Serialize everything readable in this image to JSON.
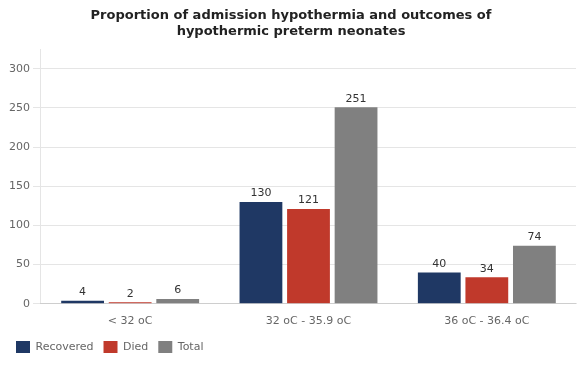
{
  "chart_data": {
    "type": "bar",
    "title": "Proportion of admission hypothermia and outcomes of\nhypothermic preterm neonates",
    "categories": [
      "< 32 oC",
      "32 oC - 35.9 oC",
      "36 oC - 36.4 oC"
    ],
    "series": [
      {
        "name": "Recovered",
        "color": "#1f3864",
        "values": [
          4,
          130,
          40
        ]
      },
      {
        "name": "Died",
        "color": "#c0392b",
        "values": [
          2,
          121,
          34
        ]
      },
      {
        "name": "Total",
        "color": "#808080",
        "values": [
          6,
          251,
          74
        ]
      }
    ],
    "ylim": [
      0,
      325
    ],
    "yticks": [
      0,
      50,
      100,
      150,
      200,
      250,
      300
    ],
    "grid": true,
    "legend": "bottom left",
    "data_labels": true
  }
}
